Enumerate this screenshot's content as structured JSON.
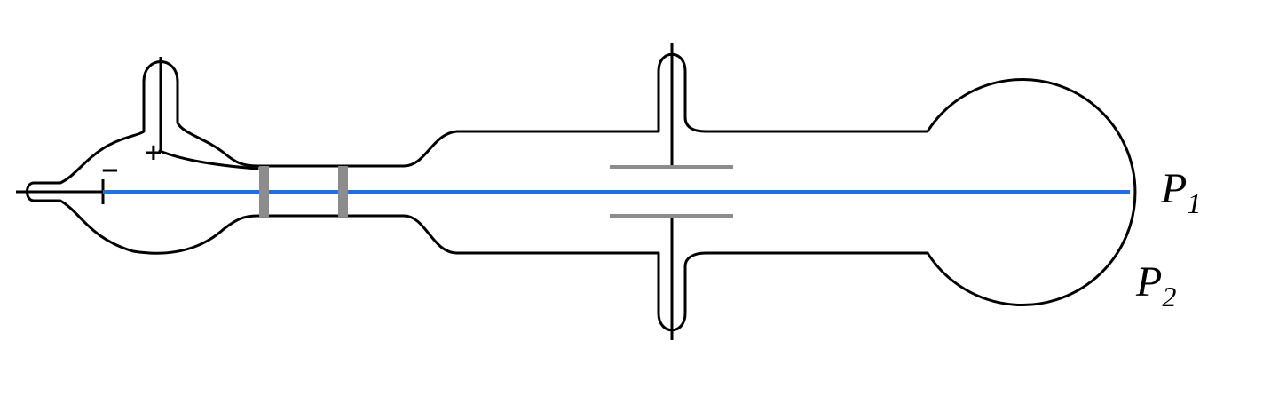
{
  "labels": {
    "cathode_sign": "−",
    "anode_sign": "+",
    "point1_letter": "P",
    "point1_sub": "1",
    "point2_letter": "P",
    "point2_sub": "2"
  },
  "colors": {
    "beam": "#1f6fe6",
    "plates": "#8c8c8c",
    "outline": "#000000"
  }
}
